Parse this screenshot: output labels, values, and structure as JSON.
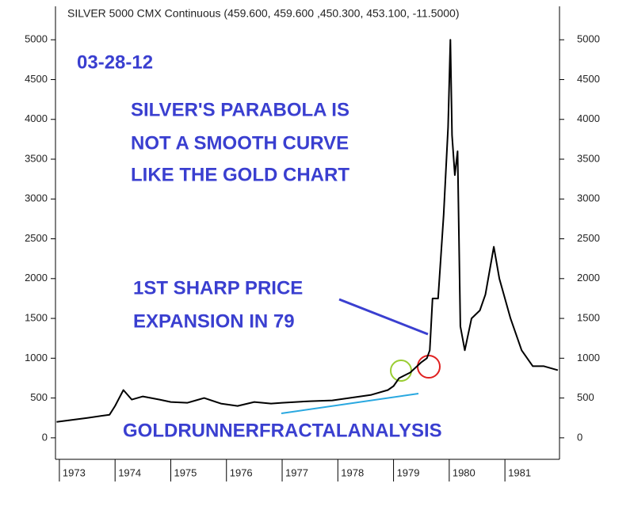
{
  "chart_data": {
    "type": "line",
    "title": "SILVER 5000 CMX Continuous (459.600, 459.600 ,450.300, 453.100, -11.5000)",
    "x": [
      1972.95,
      1973.5,
      1973.9,
      1974.0,
      1974.15,
      1974.3,
      1974.5,
      1974.8,
      1975.0,
      1975.3,
      1975.6,
      1975.9,
      1976.2,
      1976.5,
      1976.8,
      1977.0,
      1977.5,
      1977.9,
      1978.2,
      1978.6,
      1978.9,
      1979.0,
      1979.1,
      1979.3,
      1979.5,
      1979.6,
      1979.65,
      1979.7,
      1979.8,
      1979.9,
      1979.98,
      1980.02,
      1980.05,
      1980.1,
      1980.15,
      1980.2,
      1980.28,
      1980.4,
      1980.55,
      1980.65,
      1980.75,
      1980.8,
      1980.9,
      1981.1,
      1981.3,
      1981.5,
      1981.7,
      1981.95
    ],
    "series": [
      {
        "color": "#000000",
        "values": [
          200,
          250,
          290,
          400,
          600,
          480,
          520,
          480,
          450,
          440,
          500,
          430,
          400,
          450,
          430,
          440,
          460,
          470,
          500,
          540,
          600,
          650,
          750,
          820,
          950,
          1000,
          1100,
          1750,
          1750,
          2800,
          3900,
          5000,
          3800,
          3300,
          3600,
          1400,
          1100,
          1500,
          1600,
          1800,
          2200,
          2400,
          2000,
          1500,
          1100,
          900,
          900,
          850
        ]
      }
    ],
    "xlim": [
      1972.93,
      1981.98
    ],
    "xticks": [
      1973,
      1974,
      1975,
      1976,
      1977,
      1978,
      1979,
      1980,
      1981
    ],
    "ylim": [
      -270,
      5420
    ],
    "yticks": [
      0,
      500,
      1000,
      1500,
      2000,
      2500,
      3000,
      3500,
      4000,
      4500,
      5000
    ],
    "annotations": [
      "03-28-12",
      "SILVER'S PARABOLA IS",
      "NOT A SMOOTH CURVE",
      "LIKE THE GOLD CHART",
      "1ST SHARP PRICE",
      "EXPANSION IN 79",
      "GOLDRUNNERFRACTALANALYSIS"
    ]
  }
}
